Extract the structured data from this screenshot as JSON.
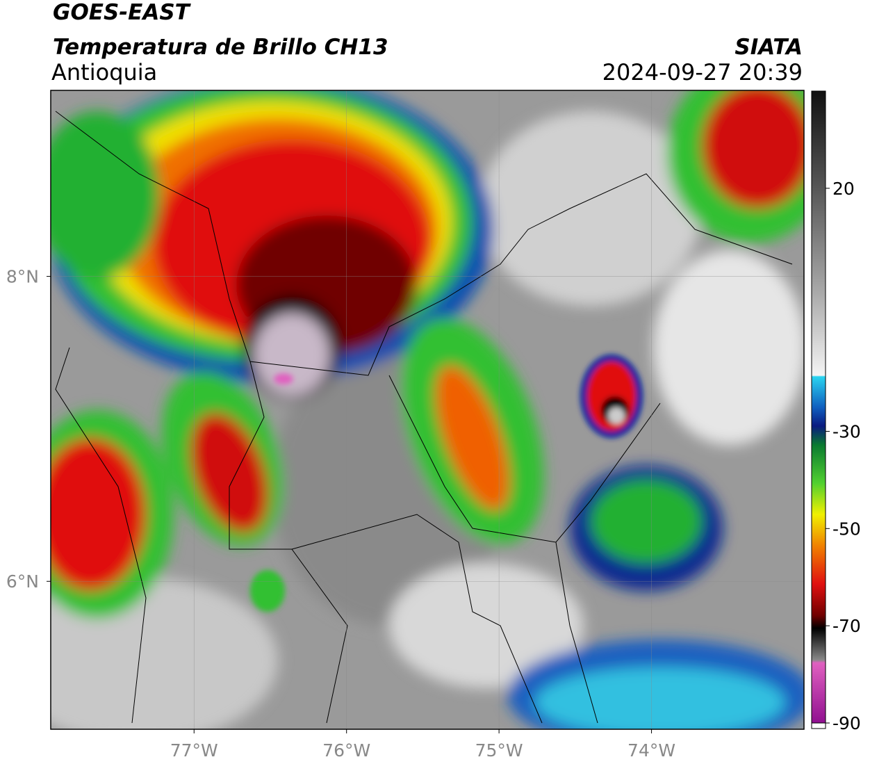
{
  "header": {
    "title": "GOES-EAST",
    "subtitle": "Temperatura de Brillo CH13",
    "region": "Antioquia",
    "source": "SIATA",
    "datetime": "2024-09-27 20:39"
  },
  "map": {
    "xlim": [
      -77.94,
      -73.0
    ],
    "ylim": [
      5.03,
      9.22
    ],
    "xticks": [
      {
        "value": -77,
        "label": "77°W"
      },
      {
        "value": -76,
        "label": "76°W"
      },
      {
        "value": -75,
        "label": "75°W"
      },
      {
        "value": -74,
        "label": "74°W"
      }
    ],
    "yticks": [
      {
        "value": 8,
        "label": "8°N"
      },
      {
        "value": 6,
        "label": "6°N"
      }
    ],
    "grid": true
  },
  "colorbar": {
    "lim": [
      -90,
      40
    ],
    "ticks": [
      20,
      -30,
      -50,
      -70,
      -90
    ]
  }
}
